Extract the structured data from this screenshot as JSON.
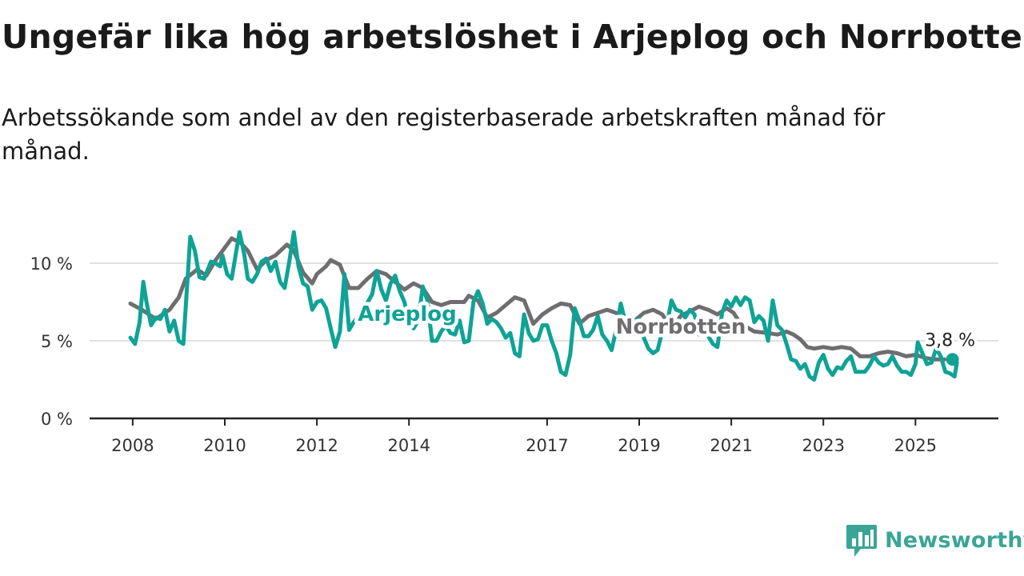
{
  "title": "Ungefär lika hög arbetslöshet i Arjeplog och Norrbotten",
  "subtitle": "Arbetssökande som andel av den registerbaserade arbetskraften månad för månad.",
  "brand": {
    "name": "Newsworthy",
    "icon": "bar-chart-speech-bubble-icon",
    "color": "#3aa596"
  },
  "chart_data": {
    "type": "line",
    "x_unit": "year",
    "xlim": [
      2007.95,
      2025.95
    ],
    "ylim": [
      0,
      10
    ],
    "y_ticks": [
      0,
      5,
      10
    ],
    "y_tick_labels": [
      "0 %",
      "5 %",
      "10 %"
    ],
    "x_ticks": [
      2008,
      2010,
      2012,
      2014,
      2017,
      2019,
      2021,
      2023,
      2025
    ],
    "x_tick_labels": [
      "2008",
      "2010",
      "2012",
      "2014",
      "2017",
      "2019",
      "2021",
      "2023",
      "2025"
    ],
    "grid": true,
    "legend": "inline labels",
    "end_label": "3,8 %",
    "series": [
      {
        "name": "Norrbotten",
        "color": "#706d71",
        "points": [
          [
            2007.95,
            7.4
          ],
          [
            2008.2,
            7.0
          ],
          [
            2008.5,
            6.4
          ],
          [
            2008.8,
            7.0
          ],
          [
            2009.0,
            7.8
          ],
          [
            2009.15,
            9.0
          ],
          [
            2009.4,
            9.6
          ],
          [
            2009.6,
            9.2
          ],
          [
            2009.8,
            10.2
          ],
          [
            2010.0,
            11.0
          ],
          [
            2010.15,
            11.6
          ],
          [
            2010.35,
            11.3
          ],
          [
            2010.5,
            10.8
          ],
          [
            2010.7,
            9.6
          ],
          [
            2010.9,
            10.2
          ],
          [
            2011.1,
            10.5
          ],
          [
            2011.35,
            11.2
          ],
          [
            2011.5,
            10.8
          ],
          [
            2011.7,
            9.4
          ],
          [
            2011.9,
            8.7
          ],
          [
            2012.0,
            9.3
          ],
          [
            2012.2,
            9.8
          ],
          [
            2012.3,
            10.2
          ],
          [
            2012.5,
            9.9
          ],
          [
            2012.7,
            8.4
          ],
          [
            2012.9,
            8.4
          ],
          [
            2013.1,
            9.0
          ],
          [
            2013.3,
            9.5
          ],
          [
            2013.5,
            9.3
          ],
          [
            2013.7,
            8.8
          ],
          [
            2013.9,
            8.3
          ],
          [
            2014.1,
            8.7
          ],
          [
            2014.3,
            8.4
          ],
          [
            2014.5,
            7.5
          ],
          [
            2014.7,
            7.3
          ],
          [
            2014.9,
            7.5
          ],
          [
            2015.0,
            7.5
          ],
          [
            2015.2,
            7.5
          ],
          [
            2015.3,
            7.9
          ],
          [
            2015.5,
            7.6
          ],
          [
            2015.7,
            6.5
          ],
          [
            2015.9,
            6.8
          ],
          [
            2016.1,
            7.3
          ],
          [
            2016.3,
            7.8
          ],
          [
            2016.5,
            7.6
          ],
          [
            2016.7,
            6.1
          ],
          [
            2016.9,
            6.7
          ],
          [
            2017.1,
            7.1
          ],
          [
            2017.3,
            7.4
          ],
          [
            2017.5,
            7.3
          ],
          [
            2017.7,
            6.1
          ],
          [
            2017.9,
            6.6
          ],
          [
            2018.1,
            6.8
          ],
          [
            2018.3,
            7.0
          ],
          [
            2018.5,
            6.8
          ],
          [
            2018.7,
            6.2
          ],
          [
            2018.9,
            6.3
          ],
          [
            2019.1,
            6.8
          ],
          [
            2019.3,
            7.0
          ],
          [
            2019.5,
            6.7
          ],
          [
            2019.7,
            5.8
          ],
          [
            2019.9,
            6.6
          ],
          [
            2020.1,
            6.9
          ],
          [
            2020.3,
            7.2
          ],
          [
            2020.5,
            7.0
          ],
          [
            2020.7,
            6.7
          ],
          [
            2020.9,
            7.1
          ],
          [
            2021.05,
            6.8
          ],
          [
            2021.2,
            6.1
          ],
          [
            2021.5,
            5.6
          ],
          [
            2021.8,
            5.5
          ],
          [
            2022.0,
            5.4
          ],
          [
            2022.2,
            5.6
          ],
          [
            2022.35,
            5.4
          ],
          [
            2022.5,
            5.1
          ],
          [
            2022.65,
            4.6
          ],
          [
            2022.8,
            4.5
          ],
          [
            2023.0,
            4.6
          ],
          [
            2023.2,
            4.5
          ],
          [
            2023.4,
            4.6
          ],
          [
            2023.6,
            4.5
          ],
          [
            2023.8,
            4.0
          ],
          [
            2024.0,
            4.0
          ],
          [
            2024.2,
            4.2
          ],
          [
            2024.4,
            4.3
          ],
          [
            2024.6,
            4.2
          ],
          [
            2024.8,
            4.0
          ],
          [
            2025.0,
            4.1
          ],
          [
            2025.2,
            3.9
          ],
          [
            2025.4,
            3.8
          ],
          [
            2025.63,
            3.8
          ]
        ]
      },
      {
        "name": "Arjeplog",
        "color": "#0fa396",
        "points": [
          [
            2007.95,
            5.2
          ],
          [
            2008.05,
            4.8
          ],
          [
            2008.15,
            6.2
          ],
          [
            2008.23,
            8.8
          ],
          [
            2008.3,
            7.5
          ],
          [
            2008.4,
            6.0
          ],
          [
            2008.5,
            6.5
          ],
          [
            2008.6,
            6.4
          ],
          [
            2008.7,
            7.0
          ],
          [
            2008.8,
            5.6
          ],
          [
            2008.9,
            6.3
          ],
          [
            2009.0,
            5.0
          ],
          [
            2009.1,
            4.8
          ],
          [
            2009.25,
            11.7
          ],
          [
            2009.35,
            10.8
          ],
          [
            2009.45,
            9.1
          ],
          [
            2009.55,
            9.0
          ],
          [
            2009.7,
            10.1
          ],
          [
            2009.8,
            10.0
          ],
          [
            2009.9,
            9.8
          ],
          [
            2009.95,
            10.5
          ],
          [
            2010.05,
            9.3
          ],
          [
            2010.15,
            9.0
          ],
          [
            2010.25,
            10.8
          ],
          [
            2010.32,
            12.0
          ],
          [
            2010.42,
            10.6
          ],
          [
            2010.5,
            9.0
          ],
          [
            2010.6,
            8.8
          ],
          [
            2010.7,
            9.3
          ],
          [
            2010.8,
            10.1
          ],
          [
            2010.9,
            10.3
          ],
          [
            2011.0,
            9.5
          ],
          [
            2011.1,
            10.1
          ],
          [
            2011.2,
            8.8
          ],
          [
            2011.3,
            8.4
          ],
          [
            2011.4,
            10.1
          ],
          [
            2011.5,
            12.0
          ],
          [
            2011.6,
            9.8
          ],
          [
            2011.7,
            8.7
          ],
          [
            2011.8,
            8.5
          ],
          [
            2011.9,
            7.0
          ],
          [
            2012.0,
            7.5
          ],
          [
            2012.1,
            7.6
          ],
          [
            2012.2,
            7.1
          ],
          [
            2012.3,
            5.8
          ],
          [
            2012.4,
            4.6
          ],
          [
            2012.5,
            5.6
          ],
          [
            2012.6,
            9.3
          ],
          [
            2012.7,
            5.7
          ],
          [
            2012.8,
            6.2
          ],
          [
            2012.95,
            6.7
          ],
          [
            2013.05,
            7.2
          ],
          [
            2013.2,
            8.0
          ],
          [
            2013.3,
            9.5
          ],
          [
            2013.4,
            8.3
          ],
          [
            2013.5,
            7.6
          ],
          [
            2013.6,
            8.7
          ],
          [
            2013.7,
            9.2
          ],
          [
            2013.8,
            8.2
          ],
          [
            2013.9,
            7.5
          ],
          [
            2014.0,
            6.2
          ],
          [
            2014.1,
            5.8
          ],
          [
            2014.2,
            6.3
          ],
          [
            2014.3,
            8.5
          ],
          [
            2014.4,
            7.6
          ],
          [
            2014.5,
            5.0
          ],
          [
            2014.6,
            5.0
          ],
          [
            2014.7,
            5.6
          ],
          [
            2014.8,
            6.0
          ],
          [
            2014.9,
            5.5
          ],
          [
            2015.0,
            5.4
          ],
          [
            2015.1,
            6.3
          ],
          [
            2015.2,
            4.9
          ],
          [
            2015.3,
            5.0
          ],
          [
            2015.4,
            7.5
          ],
          [
            2015.5,
            8.2
          ],
          [
            2015.6,
            7.4
          ],
          [
            2015.7,
            6.1
          ],
          [
            2015.8,
            6.4
          ],
          [
            2015.9,
            6.2
          ],
          [
            2016.0,
            5.8
          ],
          [
            2016.1,
            5.2
          ],
          [
            2016.2,
            5.5
          ],
          [
            2016.3,
            4.2
          ],
          [
            2016.4,
            4.0
          ],
          [
            2016.5,
            6.7
          ],
          [
            2016.6,
            5.5
          ],
          [
            2016.7,
            5.0
          ],
          [
            2016.8,
            5.1
          ],
          [
            2016.9,
            6.0
          ],
          [
            2017.0,
            6.0
          ],
          [
            2017.1,
            5.0
          ],
          [
            2017.2,
            4.2
          ],
          [
            2017.3,
            3.0
          ],
          [
            2017.4,
            2.8
          ],
          [
            2017.5,
            4.1
          ],
          [
            2017.6,
            7.1
          ],
          [
            2017.7,
            6.3
          ],
          [
            2017.8,
            5.3
          ],
          [
            2017.9,
            5.3
          ],
          [
            2018.0,
            5.7
          ],
          [
            2018.1,
            6.6
          ],
          [
            2018.2,
            5.4
          ],
          [
            2018.3,
            5.0
          ],
          [
            2018.4,
            4.4
          ],
          [
            2018.5,
            5.7
          ],
          [
            2018.6,
            7.4
          ],
          [
            2018.7,
            6.2
          ],
          [
            2018.8,
            6.2
          ],
          [
            2018.9,
            6.2
          ],
          [
            2019.0,
            6.4
          ],
          [
            2019.1,
            5.2
          ],
          [
            2019.2,
            4.5
          ],
          [
            2019.3,
            4.2
          ],
          [
            2019.4,
            4.4
          ],
          [
            2019.5,
            5.6
          ],
          [
            2019.6,
            6.0
          ],
          [
            2019.7,
            7.6
          ],
          [
            2019.8,
            7.0
          ],
          [
            2019.9,
            6.9
          ],
          [
            2020.0,
            6.5
          ],
          [
            2020.1,
            7.0
          ],
          [
            2020.2,
            6.7
          ],
          [
            2020.3,
            5.4
          ],
          [
            2020.4,
            5.6
          ],
          [
            2020.5,
            5.3
          ],
          [
            2020.6,
            4.8
          ],
          [
            2020.7,
            4.6
          ],
          [
            2020.8,
            6.8
          ],
          [
            2020.9,
            7.6
          ],
          [
            2021.0,
            7.2
          ],
          [
            2021.1,
            7.8
          ],
          [
            2021.2,
            7.3
          ],
          [
            2021.3,
            7.8
          ],
          [
            2021.4,
            7.6
          ],
          [
            2021.5,
            6.2
          ],
          [
            2021.6,
            6.6
          ],
          [
            2021.7,
            6.3
          ],
          [
            2021.8,
            5.0
          ],
          [
            2021.9,
            7.6
          ],
          [
            2022.0,
            6.0
          ],
          [
            2022.1,
            5.7
          ],
          [
            2022.2,
            4.8
          ],
          [
            2022.3,
            3.8
          ],
          [
            2022.4,
            3.7
          ],
          [
            2022.5,
            3.2
          ],
          [
            2022.6,
            3.5
          ],
          [
            2022.7,
            2.7
          ],
          [
            2022.8,
            2.5
          ],
          [
            2022.9,
            3.6
          ],
          [
            2023.0,
            4.1
          ],
          [
            2023.1,
            3.2
          ],
          [
            2023.2,
            2.8
          ],
          [
            2023.3,
            3.3
          ],
          [
            2023.4,
            3.2
          ],
          [
            2023.5,
            3.7
          ],
          [
            2023.6,
            4.0
          ],
          [
            2023.7,
            3.0
          ],
          [
            2023.8,
            3.0
          ],
          [
            2023.9,
            3.0
          ],
          [
            2024.0,
            3.4
          ],
          [
            2024.1,
            4.0
          ],
          [
            2024.2,
            3.6
          ],
          [
            2024.3,
            3.4
          ],
          [
            2024.4,
            3.5
          ],
          [
            2024.5,
            4.0
          ],
          [
            2024.6,
            3.4
          ],
          [
            2024.7,
            3.0
          ],
          [
            2024.8,
            3.0
          ],
          [
            2024.9,
            2.8
          ],
          [
            2025.0,
            3.5
          ],
          [
            2025.05,
            4.9
          ],
          [
            2025.15,
            4.2
          ],
          [
            2025.25,
            3.5
          ],
          [
            2025.35,
            3.6
          ],
          [
            2025.45,
            4.5
          ],
          [
            2025.55,
            4.0
          ],
          [
            2025.65,
            3.0
          ],
          [
            2025.75,
            2.9
          ],
          [
            2025.85,
            2.7
          ],
          [
            2025.9,
            3.6
          ]
        ]
      }
    ]
  }
}
